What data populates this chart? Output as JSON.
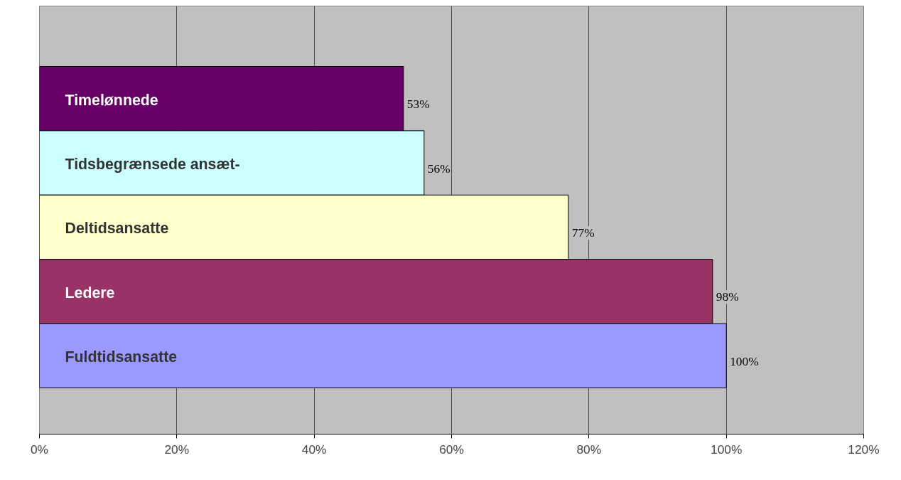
{
  "chart_data": {
    "type": "bar",
    "orientation": "horizontal",
    "categories": [
      "Timelønnede",
      "Tidsbegrænsede ansæt-",
      "Deltidsansatte",
      "Ledere",
      "Fuldtidsansatte"
    ],
    "values": [
      53,
      56,
      77,
      98,
      100
    ],
    "colors": [
      "#660066",
      "#ccffff",
      "#ffffcc",
      "#993366",
      "#9999ff"
    ],
    "value_labels": [
      "53%",
      "56%",
      "77%",
      "98%",
      "100%"
    ],
    "xlim": [
      0,
      120
    ],
    "xticks": [
      {
        "value": 0,
        "label": "0%"
      },
      {
        "value": 20,
        "label": "20%"
      },
      {
        "value": 40,
        "label": "40%"
      },
      {
        "value": 60,
        "label": "60%"
      },
      {
        "value": 80,
        "label": "80%"
      },
      {
        "value": 100,
        "label": "100%"
      },
      {
        "value": 120,
        "label": "120%"
      }
    ],
    "grid": "x"
  }
}
